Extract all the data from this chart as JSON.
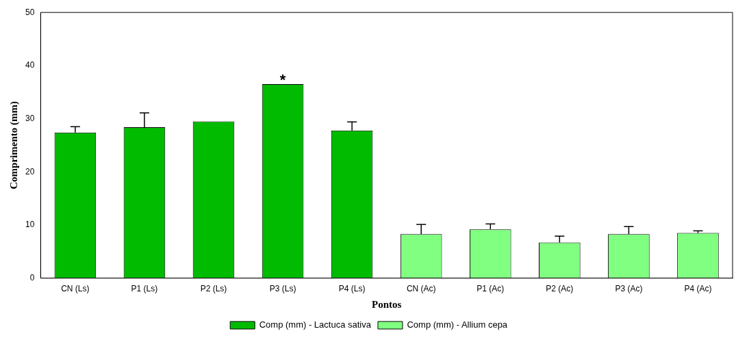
{
  "chart_data": {
    "type": "bar",
    "xlabel": "Pontos",
    "ylabel": "Comprimento (mm)",
    "categories": [
      "CN (Ls)",
      "P1 (Ls)",
      "P2 (Ls)",
      "P3 (Ls)",
      "P4 (Ls)",
      "CN (Ac)",
      "P1 (Ac)",
      "P2 (Ac)",
      "P3 (Ac)",
      "P4 (Ac)"
    ],
    "series": [
      {
        "name": "Comp (mm) - Lactuca sativa",
        "color": "#00bb00",
        "values": [
          27.4,
          28.4,
          29.5,
          36.5,
          27.8,
          null,
          null,
          null,
          null,
          null
        ],
        "errors": [
          [
            27.4,
            28.5
          ],
          [
            28.4,
            31.1
          ],
          null,
          null,
          [
            27.8,
            29.4
          ],
          null,
          null,
          null,
          null,
          null
        ]
      },
      {
        "name": "Comp (mm) - Allium cepa",
        "color": "#80ff80",
        "values": [
          null,
          null,
          null,
          null,
          null,
          8.3,
          9.2,
          6.7,
          8.3,
          8.5
        ],
        "errors": [
          null,
          null,
          null,
          null,
          null,
          [
            8.3,
            10.1
          ],
          [
            9.2,
            10.2
          ],
          [
            6.7,
            7.9
          ],
          [
            8.3,
            9.7
          ],
          [
            8.5,
            8.9
          ]
        ]
      }
    ],
    "ylim": [
      0,
      50
    ],
    "yticks": [
      0,
      10,
      20,
      30,
      40,
      50
    ],
    "grid": false,
    "legend": "bottom",
    "annotations": [
      {
        "text": "*",
        "x": "P3 (Ls)",
        "y": 36.5
      }
    ]
  }
}
